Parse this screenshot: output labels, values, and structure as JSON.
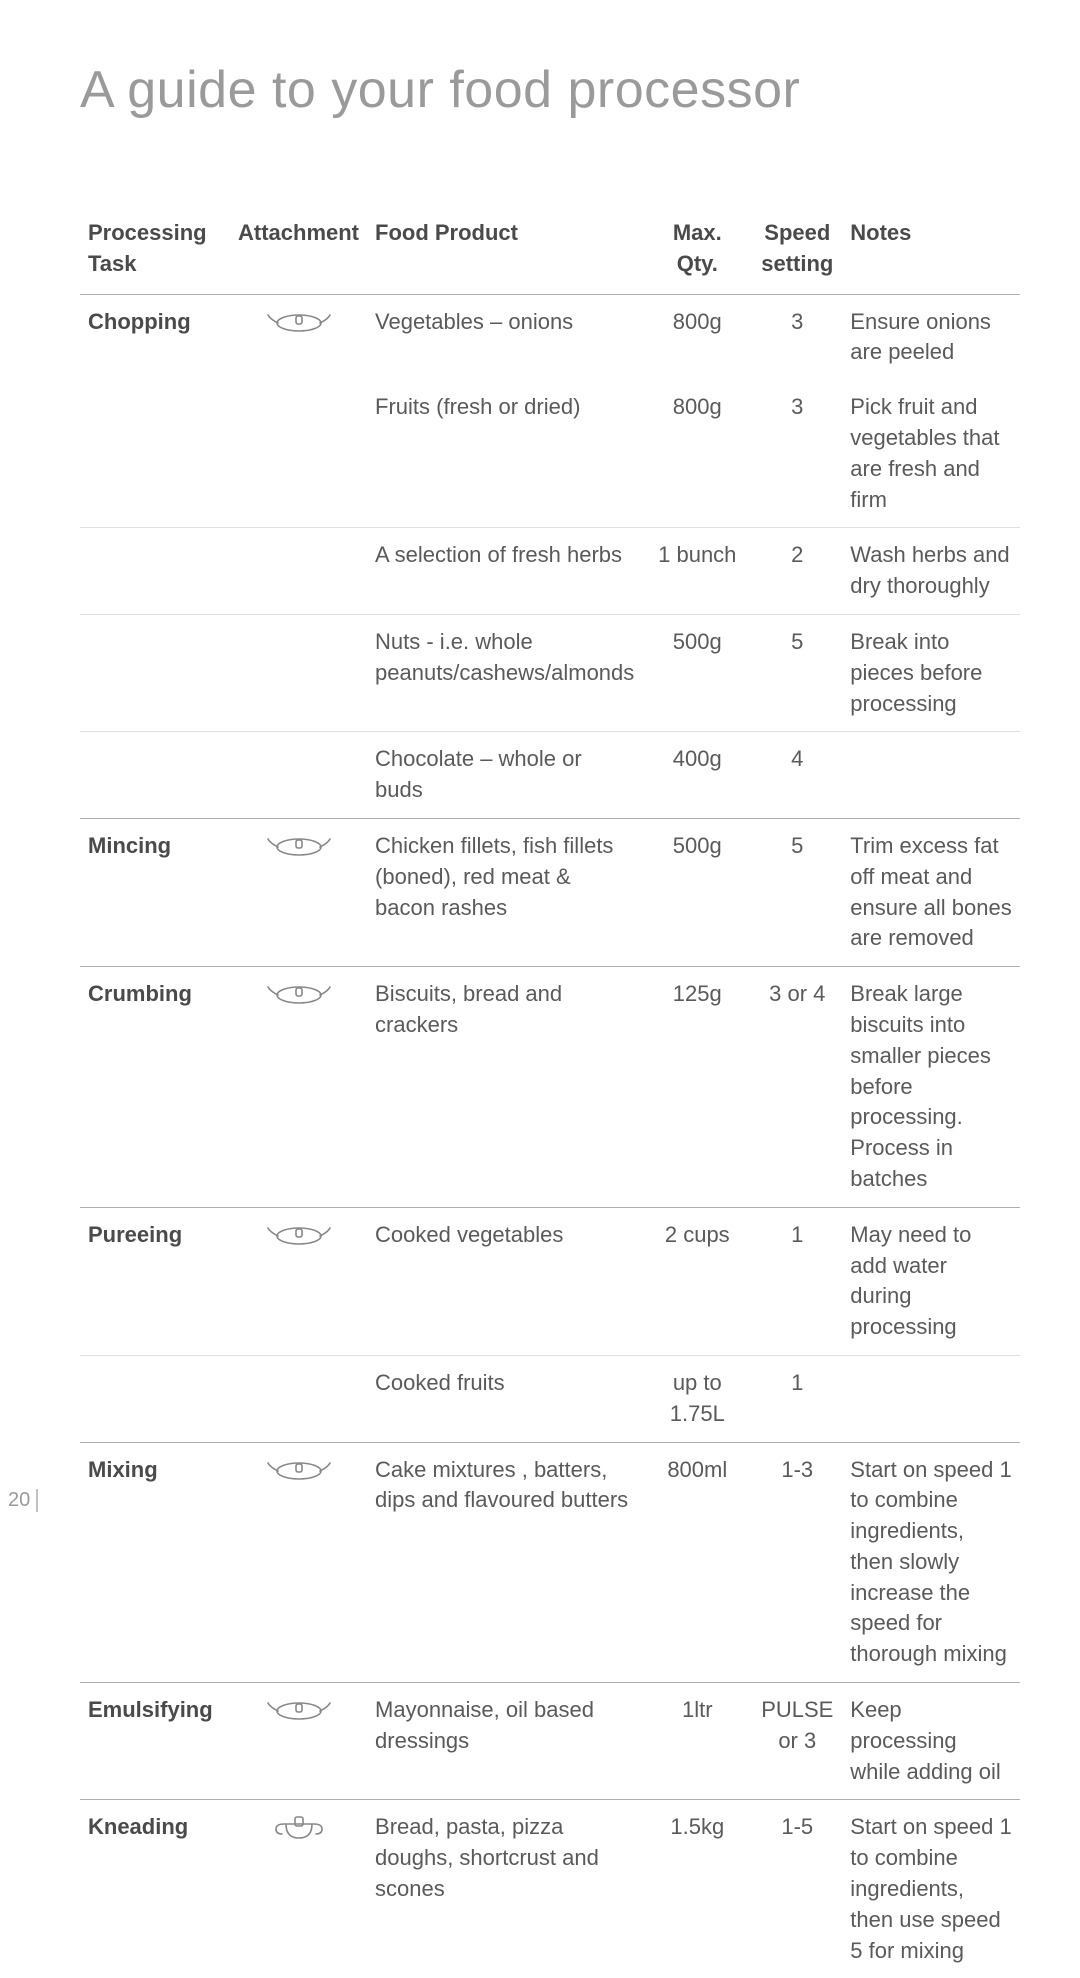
{
  "title": "A guide to your food processor",
  "page_number": "20",
  "colors": {
    "title": "#9a9a9a",
    "text": "#5a5a5a",
    "bold": "#4a4a4a",
    "rule_heavy": "#b0b0b0",
    "rule_light": "#e0e0e0",
    "icon": "#888888"
  },
  "typography": {
    "title_fontsize": 52,
    "title_weight": 300,
    "body_fontsize": 22,
    "line_height": 1.4
  },
  "columns": [
    {
      "key": "task",
      "label": "Processing\nTask"
    },
    {
      "key": "attachment",
      "label": "Attachment"
    },
    {
      "key": "food",
      "label": "Food Product"
    },
    {
      "key": "qty",
      "label": "Max.\nQty."
    },
    {
      "key": "speed",
      "label": "Speed\nsetting"
    },
    {
      "key": "notes",
      "label": "Notes"
    }
  ],
  "rows": [
    {
      "group": true,
      "task": "Chopping",
      "attachment": "blade",
      "food": "Vegetables – onions",
      "qty": "800g",
      "speed": "3",
      "notes": "Ensure onions are peeled"
    },
    {
      "food": "Fruits (fresh or dried)",
      "qty": "800g",
      "speed": "3",
      "notes": "Pick fruit and vegetables that are fresh and firm"
    },
    {
      "sub": true,
      "food": "A selection of fresh herbs",
      "qty": "1 bunch",
      "speed": "2",
      "notes": "Wash herbs and dry thoroughly"
    },
    {
      "sub": true,
      "food": "Nuts - i.e. whole peanuts/cashews/almonds",
      "qty": "500g",
      "speed": "5",
      "notes": "Break into pieces before processing"
    },
    {
      "sub": true,
      "food": "Chocolate – whole or buds",
      "qty": "400g",
      "speed": "4",
      "notes": ""
    },
    {
      "group": true,
      "task": "Mincing",
      "attachment": "blade",
      "food": "Chicken fillets, fish fillets (boned), red meat & bacon rashes",
      "qty": "500g",
      "speed": "5",
      "notes": "Trim excess fat off meat and ensure all bones are removed"
    },
    {
      "group": true,
      "task": "Crumbing",
      "attachment": "blade",
      "food": "Biscuits, bread and crackers",
      "qty": "125g",
      "speed": "3 or 4",
      "notes": "Break large biscuits into smaller pieces before processing. Process in batches"
    },
    {
      "group": true,
      "task": "Pureeing",
      "attachment": "blade",
      "food": "Cooked vegetables",
      "qty": "2 cups",
      "speed": "1",
      "notes": "May need to add water during processing"
    },
    {
      "sub": true,
      "food": "Cooked fruits",
      "qty": "up to 1.75L",
      "speed": "1",
      "notes": ""
    },
    {
      "group": true,
      "task": "Mixing",
      "attachment": "blade",
      "food": "Cake mixtures , batters, dips and flavoured butters",
      "qty": "800ml",
      "speed": "1-3",
      "notes": "Start on speed 1 to combine ingredients, then slowly increase the speed for thorough mixing"
    },
    {
      "group": true,
      "task": "Emulsifying",
      "attachment": "blade",
      "food": "Mayonnaise, oil based dressings",
      "qty": "1ltr",
      "speed": "PULSE or 3",
      "notes": "Keep processing while adding oil"
    },
    {
      "group": true,
      "task": "Kneading",
      "attachment": "dough",
      "food": "Bread, pasta, pizza doughs, shortcrust and scones",
      "qty": "1.5kg",
      "speed": "1-5",
      "notes": "Start on speed 1 to combine ingredients, then use speed 5 for mixing"
    }
  ],
  "icons": {
    "blade": "blade-icon",
    "dough": "dough-icon"
  }
}
